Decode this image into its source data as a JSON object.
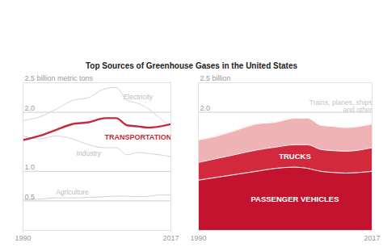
{
  "chart_data": [
    {
      "type": "line",
      "title": "Top Sources of Greenhouse Gases in the United States",
      "x": [
        1990,
        1993,
        1996,
        1999,
        2002,
        2005,
        2007,
        2009,
        2011,
        2013,
        2015,
        2017
      ],
      "series": [
        {
          "name": "Electricity",
          "color": "#d3d3d3",
          "line_style": "solid",
          "values": [
            1.86,
            1.92,
            2.05,
            2.2,
            2.25,
            2.4,
            2.42,
            2.2,
            2.15,
            2.05,
            1.9,
            1.75
          ]
        },
        {
          "name": "Industry",
          "color": "#d3d3d3",
          "line_style": "solid",
          "values": [
            1.6,
            1.55,
            1.6,
            1.55,
            1.45,
            1.4,
            1.4,
            1.28,
            1.32,
            1.3,
            1.28,
            1.25
          ]
        },
        {
          "name": "Agriculture",
          "color": "#d3d3d3",
          "line_style": "solid",
          "values": [
            0.52,
            0.53,
            0.55,
            0.55,
            0.56,
            0.57,
            0.58,
            0.58,
            0.57,
            0.58,
            0.6,
            0.6
          ]
        },
        {
          "name": "TRANSPORTATION",
          "color": "#c8283b",
          "line_style": "thick",
          "values": [
            1.53,
            1.6,
            1.7,
            1.8,
            1.83,
            1.9,
            1.9,
            1.78,
            1.76,
            1.74,
            1.76,
            1.8
          ]
        }
      ],
      "xlim": [
        1990,
        2017
      ],
      "xticks": [
        1990,
        2017
      ],
      "ylim": [
        0,
        2.5
      ],
      "yticks": [
        {
          "value": 0.5,
          "label": "0.5"
        },
        {
          "value": 1,
          "label": "1.0"
        },
        {
          "value": 2,
          "label": "2.0"
        },
        {
          "value": 2.5,
          "label": "2.5 billion metric tons"
        }
      ],
      "grid": true
    },
    {
      "type": "area",
      "stacked": true,
      "x": [
        1990,
        1993,
        1996,
        1999,
        2002,
        2005,
        2007,
        2009,
        2011,
        2013,
        2015,
        2017
      ],
      "series": [
        {
          "name": "PASSENGER VEHICLES",
          "color": "#c4132f",
          "values": [
            0.85,
            0.9,
            0.95,
            1.0,
            1.05,
            1.07,
            1.05,
            1.0,
            0.98,
            0.97,
            0.98,
            1.0
          ]
        },
        {
          "name": "TRUCKS",
          "color": "#d22a3c",
          "values": [
            0.3,
            0.32,
            0.34,
            0.36,
            0.36,
            0.38,
            0.4,
            0.37,
            0.37,
            0.37,
            0.38,
            0.4
          ]
        },
        {
          "name": "Trains, planes, ships and other",
          "color": "#efb3b5",
          "values": [
            0.38,
            0.38,
            0.41,
            0.44,
            0.42,
            0.45,
            0.45,
            0.41,
            0.41,
            0.4,
            0.4,
            0.4
          ]
        }
      ],
      "xlim": [
        1990,
        2017
      ],
      "xticks": [
        1990,
        2017
      ],
      "ylim": [
        0,
        2.5
      ],
      "yticks": [
        {
          "value": 2,
          "label": "2.0"
        },
        {
          "value": 2.5,
          "label": "2.5 billion"
        }
      ],
      "grid": true
    }
  ]
}
